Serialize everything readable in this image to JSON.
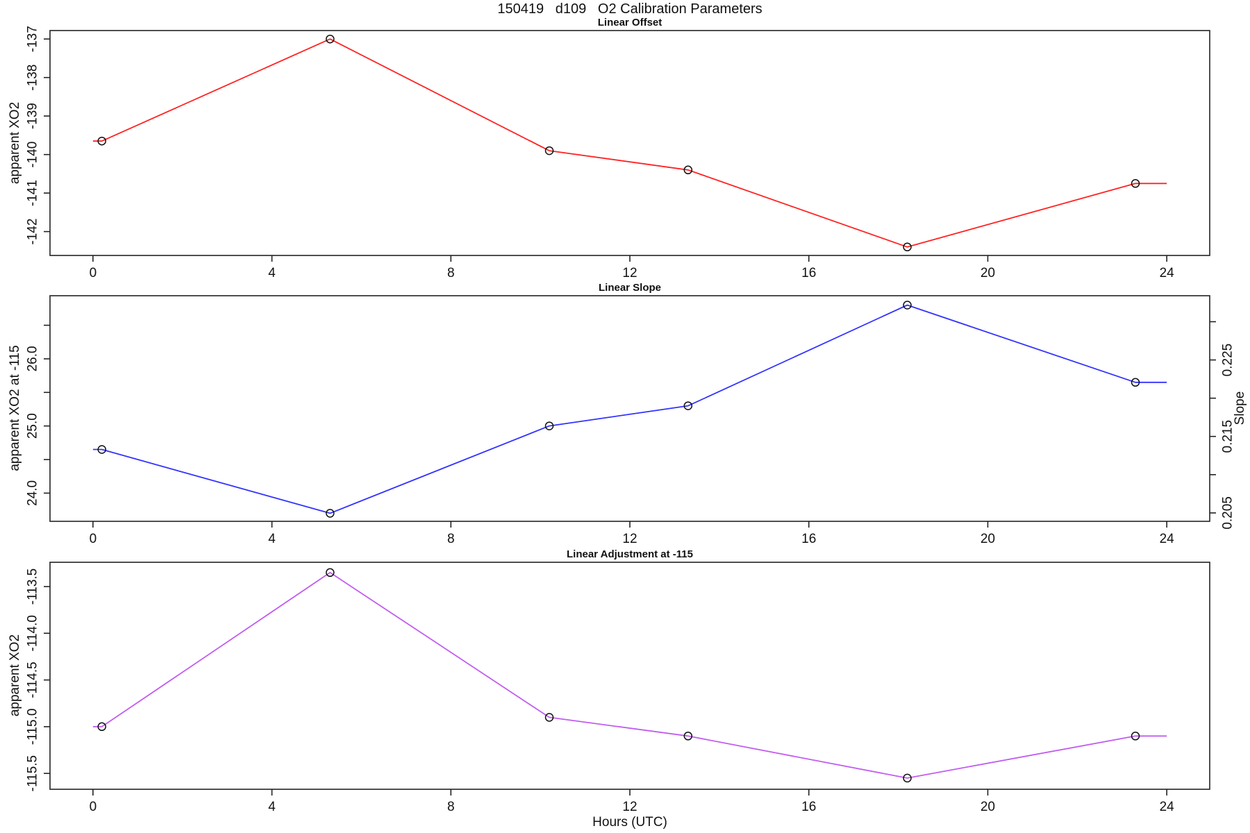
{
  "figure": {
    "title": "150419   d109   O2 Calibration Parameters",
    "background": "#ffffff",
    "axis_color": "#222222",
    "marker": "open-circle",
    "marker_color": "#111111"
  },
  "chart_data": [
    {
      "type": "line",
      "title": "Linear Offset",
      "ylabel": "apparent XO2",
      "series_color": "#ff2222",
      "x": [
        0.2,
        5.3,
        10.2,
        13.3,
        18.2,
        23.3
      ],
      "values": [
        -139.65,
        -137.0,
        -139.9,
        -140.4,
        -142.4,
        -140.75
      ],
      "edge_line": {
        "from": 0,
        "to": 24
      },
      "xlim": [
        -0.96,
        24.96
      ],
      "ylim": [
        -142.62,
        -136.78
      ],
      "xticks": [
        0,
        4,
        8,
        12,
        16,
        20,
        24
      ],
      "yticks": [
        -142,
        -141,
        -140,
        -139,
        -138,
        -137
      ],
      "ytick_labels": [
        "-142",
        "-141",
        "-140",
        "-139",
        "-138",
        "-137"
      ],
      "grid": false,
      "legend": "none"
    },
    {
      "type": "line",
      "title": "Linear Slope",
      "ylabel": "apparent XO2 at -115",
      "ylabel_right": "Slope",
      "series_color": "#3232ff",
      "x": [
        0.2,
        5.3,
        10.2,
        13.3,
        18.2,
        23.3
      ],
      "values": [
        24.65,
        23.7,
        25.0,
        25.3,
        26.8,
        25.65
      ],
      "values_slope_scale": [
        0.2133,
        0.2049,
        0.2165,
        0.219,
        0.2321,
        0.2219
      ],
      "edge_line": {
        "from": 0,
        "to": 24
      },
      "xlim": [
        -0.96,
        24.96
      ],
      "ylim": [
        23.58,
        26.94
      ],
      "ylim_right": [
        0.2039,
        0.2334
      ],
      "xticks": [
        0,
        4,
        8,
        12,
        16,
        20,
        24
      ],
      "yticks": [
        24.0,
        24.5,
        25.0,
        25.5,
        26.0,
        26.5
      ],
      "ytick_labels": [
        "24.0",
        "",
        "25.0",
        "",
        "26.0",
        ""
      ],
      "yticks_right": [
        0.205,
        0.21,
        0.215,
        0.22,
        0.225,
        0.23
      ],
      "ytick_labels_right": [
        "0.205",
        "",
        "0.215",
        "",
        "0.225",
        ""
      ],
      "grid": false,
      "legend": "none"
    },
    {
      "type": "line",
      "title": "Linear Adjustment at -115",
      "ylabel": "apparent XO2",
      "xlabel": "Hours (UTC)",
      "series_color": "#c25cf0",
      "x": [
        0.2,
        5.3,
        10.2,
        13.3,
        18.2,
        23.3
      ],
      "values": [
        -115.0,
        -113.35,
        -114.9,
        -115.1,
        -115.55,
        -115.1
      ],
      "edge_line": {
        "from": 0,
        "to": 24
      },
      "xlim": [
        -0.96,
        24.96
      ],
      "ylim": [
        -115.67,
        -113.24
      ],
      "xticks": [
        0,
        4,
        8,
        12,
        16,
        20,
        24
      ],
      "yticks": [
        -115.5,
        -115.0,
        -114.5,
        -114.0,
        -113.5
      ],
      "ytick_labels": [
        "-115.5",
        "-115.0",
        "-114.5",
        "-114.0",
        "-113.5"
      ],
      "grid": false,
      "legend": "none"
    }
  ]
}
